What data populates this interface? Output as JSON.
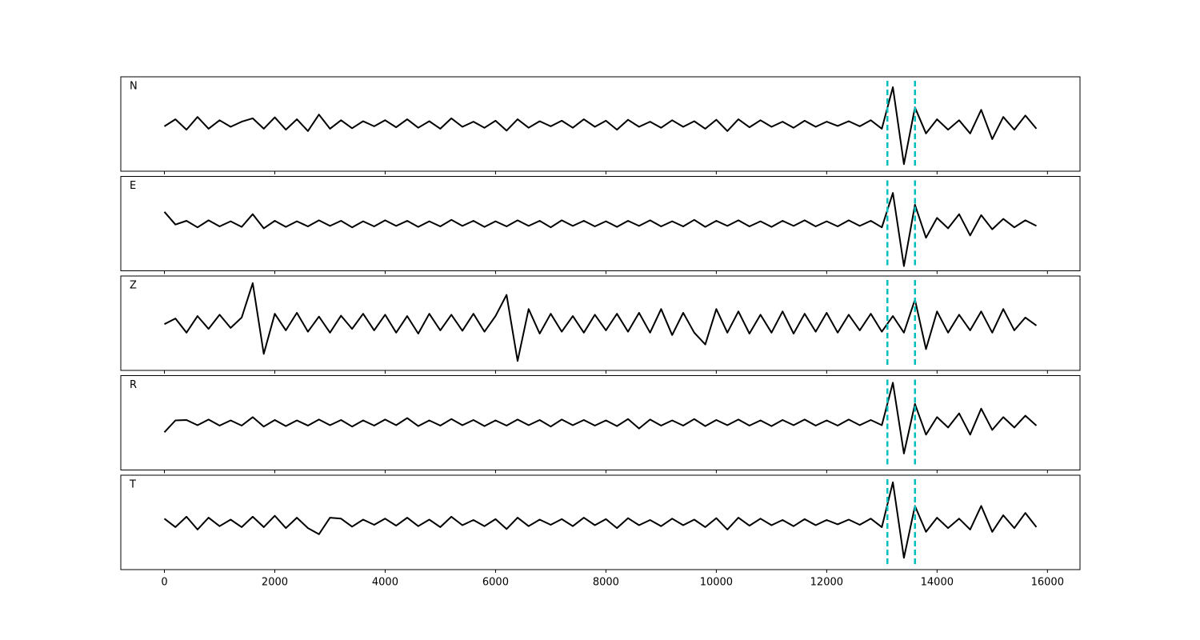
{
  "chart_data": [
    {
      "type": "line",
      "label": "N",
      "color": "#000000",
      "marker_color": "#00bfbf",
      "markers": [
        13100,
        13600
      ],
      "xlim": [
        -790,
        16590
      ],
      "ylim": [
        -1,
        1
      ],
      "x": [
        0,
        200,
        400,
        600,
        800,
        1000,
        1200,
        1400,
        1600,
        1800,
        2000,
        2200,
        2400,
        2600,
        2800,
        3000,
        3200,
        3400,
        3600,
        3800,
        4000,
        4200,
        4400,
        4600,
        4800,
        5000,
        5200,
        5400,
        5600,
        5800,
        6000,
        6200,
        6400,
        6600,
        6800,
        7000,
        7200,
        7400,
        7600,
        7800,
        8000,
        8200,
        8400,
        8600,
        8800,
        9000,
        9200,
        9400,
        9600,
        9800,
        10000,
        10200,
        10400,
        10600,
        10800,
        11000,
        11200,
        11400,
        11600,
        11800,
        12000,
        12200,
        12400,
        12600,
        12800,
        13000,
        13200,
        13400,
        13600,
        13800,
        14000,
        14200,
        14400,
        14600,
        14800,
        15000,
        15200,
        15400,
        15600,
        15800
      ],
      "values": [
        -0.05,
        0.1,
        -0.12,
        0.15,
        -0.1,
        0.08,
        -0.06,
        0.05,
        0.12,
        -0.1,
        0.14,
        -0.12,
        0.1,
        -0.15,
        0.2,
        -0.1,
        0.08,
        -0.09,
        0.06,
        -0.05,
        0.08,
        -0.07,
        0.1,
        -0.08,
        0.06,
        -0.1,
        0.12,
        -0.06,
        0.05,
        -0.08,
        0.07,
        -0.14,
        0.1,
        -0.08,
        0.06,
        -0.05,
        0.07,
        -0.08,
        0.1,
        -0.06,
        0.07,
        -0.12,
        0.09,
        -0.06,
        0.05,
        -0.08,
        0.08,
        -0.06,
        0.06,
        -0.1,
        0.09,
        -0.15,
        0.1,
        -0.07,
        0.08,
        -0.06,
        0.05,
        -0.08,
        0.07,
        -0.06,
        0.05,
        -0.04,
        0.06,
        -0.05,
        0.08,
        -0.1,
        0.78,
        -0.85,
        0.35,
        -0.2,
        0.1,
        -0.12,
        0.08,
        -0.2,
        0.3,
        -0.32,
        0.15,
        -0.12,
        0.18,
        -0.1
      ]
    },
    {
      "type": "line",
      "label": "E",
      "color": "#000000",
      "marker_color": "#00bfbf",
      "markers": [
        13100,
        13600
      ],
      "xlim": [
        -790,
        16590
      ],
      "ylim": [
        -1,
        1
      ],
      "x": [
        0,
        200,
        400,
        600,
        800,
        1000,
        1200,
        1400,
        1600,
        1800,
        2000,
        2200,
        2400,
        2600,
        2800,
        3000,
        3200,
        3400,
        3600,
        3800,
        4000,
        4200,
        4400,
        4600,
        4800,
        5000,
        5200,
        5400,
        5600,
        5800,
        6000,
        6200,
        6400,
        6600,
        6800,
        7000,
        7200,
        7400,
        7600,
        7800,
        8000,
        8200,
        8400,
        8600,
        8800,
        9000,
        9200,
        9400,
        9600,
        9800,
        10000,
        10200,
        10400,
        10600,
        10800,
        11000,
        11200,
        11400,
        11600,
        11800,
        12000,
        12200,
        12400,
        12600,
        12800,
        13000,
        13200,
        13400,
        13600,
        13800,
        14000,
        14200,
        14400,
        14600,
        14800,
        15000,
        15200,
        15400,
        15600,
        15800
      ],
      "values": [
        0.25,
        -0.02,
        0.06,
        -0.08,
        0.07,
        -0.06,
        0.05,
        -0.07,
        0.2,
        -0.1,
        0.06,
        -0.07,
        0.05,
        -0.06,
        0.07,
        -0.05,
        0.06,
        -0.08,
        0.05,
        -0.06,
        0.07,
        -0.05,
        0.06,
        -0.07,
        0.05,
        -0.06,
        0.08,
        -0.05,
        0.06,
        -0.07,
        0.05,
        -0.06,
        0.07,
        -0.05,
        0.06,
        -0.08,
        0.07,
        -0.05,
        0.06,
        -0.06,
        0.05,
        -0.07,
        0.06,
        -0.05,
        0.07,
        -0.06,
        0.05,
        -0.06,
        0.08,
        -0.07,
        0.06,
        -0.05,
        0.07,
        -0.06,
        0.05,
        -0.07,
        0.06,
        -0.05,
        0.07,
        -0.06,
        0.05,
        -0.06,
        0.07,
        -0.05,
        0.06,
        -0.08,
        0.65,
        -0.9,
        0.4,
        -0.3,
        0.12,
        -0.1,
        0.2,
        -0.25,
        0.18,
        -0.12,
        0.1,
        -0.08,
        0.07,
        -0.05
      ]
    },
    {
      "type": "line",
      "label": "Z",
      "color": "#000000",
      "marker_color": "#00bfbf",
      "markers": [
        13100,
        13600
      ],
      "xlim": [
        -790,
        16590
      ],
      "ylim": [
        -1,
        1
      ],
      "x": [
        0,
        200,
        400,
        600,
        800,
        1000,
        1200,
        1400,
        1600,
        1800,
        2000,
        2200,
        2400,
        2600,
        2800,
        3000,
        3200,
        3400,
        3600,
        3800,
        4000,
        4200,
        4400,
        4600,
        4800,
        5000,
        5200,
        5400,
        5600,
        5800,
        6000,
        6200,
        6400,
        6600,
        6800,
        7000,
        7200,
        7400,
        7600,
        7800,
        8000,
        8200,
        8400,
        8600,
        8800,
        9000,
        9200,
        9400,
        9600,
        9800,
        10000,
        10200,
        10400,
        10600,
        10800,
        11000,
        11200,
        11400,
        11600,
        11800,
        12000,
        12200,
        12400,
        12600,
        12800,
        13000,
        13200,
        13400,
        13600,
        13800,
        14000,
        14200,
        14400,
        14600,
        14800,
        15000,
        15200,
        15400,
        15600,
        15800
      ],
      "values": [
        -0.02,
        0.1,
        -0.2,
        0.15,
        -0.12,
        0.18,
        -0.1,
        0.12,
        0.85,
        -0.65,
        0.2,
        -0.15,
        0.22,
        -0.18,
        0.14,
        -0.2,
        0.16,
        -0.12,
        0.2,
        -0.15,
        0.18,
        -0.2,
        0.15,
        -0.22,
        0.2,
        -0.15,
        0.18,
        -0.16,
        0.2,
        -0.18,
        0.15,
        0.6,
        -0.8,
        0.3,
        -0.22,
        0.2,
        -0.18,
        0.15,
        -0.2,
        0.18,
        -0.15,
        0.2,
        -0.18,
        0.22,
        -0.2,
        0.3,
        -0.25,
        0.22,
        -0.2,
        -0.45,
        0.3,
        -0.2,
        0.25,
        -0.22,
        0.18,
        -0.2,
        0.25,
        -0.22,
        0.2,
        -0.18,
        0.22,
        -0.2,
        0.18,
        -0.15,
        0.2,
        -0.18,
        0.15,
        -0.2,
        0.5,
        -0.55,
        0.25,
        -0.2,
        0.18,
        -0.15,
        0.25,
        -0.2,
        0.3,
        -0.15,
        0.12,
        -0.05
      ]
    },
    {
      "type": "line",
      "label": "R",
      "color": "#000000",
      "marker_color": "#00bfbf",
      "markers": [
        13100,
        13600
      ],
      "xlim": [
        -790,
        16590
      ],
      "ylim": [
        -1,
        1
      ],
      "x": [
        0,
        200,
        400,
        600,
        800,
        1000,
        1200,
        1400,
        1600,
        1800,
        2000,
        2200,
        2400,
        2600,
        2800,
        3000,
        3200,
        3400,
        3600,
        3800,
        4000,
        4200,
        4400,
        4600,
        4800,
        5000,
        5200,
        5400,
        5600,
        5800,
        6000,
        6200,
        6400,
        6600,
        6800,
        7000,
        7200,
        7400,
        7600,
        7800,
        8000,
        8200,
        8400,
        8600,
        8800,
        9000,
        9200,
        9400,
        9600,
        9800,
        10000,
        10200,
        10400,
        10600,
        10800,
        11000,
        11200,
        11400,
        11600,
        11800,
        12000,
        12200,
        12400,
        12600,
        12800,
        13000,
        13200,
        13400,
        13600,
        13800,
        14000,
        14200,
        14400,
        14600,
        14800,
        15000,
        15200,
        15400,
        15600,
        15800
      ],
      "values": [
        -0.2,
        0.05,
        0.06,
        -0.05,
        0.07,
        -0.06,
        0.05,
        -0.06,
        0.12,
        -0.08,
        0.06,
        -0.07,
        0.05,
        -0.06,
        0.07,
        -0.05,
        0.06,
        -0.08,
        0.05,
        -0.06,
        0.07,
        -0.05,
        0.1,
        -0.07,
        0.05,
        -0.06,
        0.08,
        -0.05,
        0.06,
        -0.07,
        0.05,
        -0.06,
        0.07,
        -0.05,
        0.06,
        -0.08,
        0.07,
        -0.05,
        0.06,
        -0.06,
        0.05,
        -0.07,
        0.08,
        -0.12,
        0.07,
        -0.06,
        0.05,
        -0.06,
        0.08,
        -0.07,
        0.06,
        -0.05,
        0.07,
        -0.06,
        0.05,
        -0.07,
        0.06,
        -0.05,
        0.07,
        -0.06,
        0.05,
        -0.06,
        0.07,
        -0.05,
        0.06,
        -0.05,
        0.85,
        -0.65,
        0.4,
        -0.25,
        0.12,
        -0.1,
        0.2,
        -0.25,
        0.3,
        -0.15,
        0.12,
        -0.1,
        0.15,
        -0.06
      ]
    },
    {
      "type": "line",
      "label": "T",
      "color": "#000000",
      "marker_color": "#00bfbf",
      "markers": [
        13100,
        13600
      ],
      "xlim": [
        -790,
        16590
      ],
      "ylim": [
        -1,
        1
      ],
      "x": [
        0,
        200,
        400,
        600,
        800,
        1000,
        1200,
        1400,
        1600,
        1800,
        2000,
        2200,
        2400,
        2600,
        2800,
        3000,
        3200,
        3400,
        3600,
        3800,
        4000,
        4200,
        4400,
        4600,
        4800,
        5000,
        5200,
        5400,
        5600,
        5800,
        6000,
        6200,
        6400,
        6600,
        6800,
        7000,
        7200,
        7400,
        7600,
        7800,
        8000,
        8200,
        8400,
        8600,
        8800,
        9000,
        9200,
        9400,
        9600,
        9800,
        10000,
        10200,
        10400,
        10600,
        10800,
        11000,
        11200,
        11400,
        11600,
        11800,
        12000,
        12200,
        12400,
        12600,
        12800,
        13000,
        13200,
        13400,
        13600,
        13800,
        14000,
        14200,
        14400,
        14600,
        14800,
        15000,
        15200,
        15400,
        15600,
        15800
      ],
      "values": [
        0.08,
        -0.1,
        0.12,
        -0.15,
        0.1,
        -0.08,
        0.06,
        -0.1,
        0.12,
        -0.1,
        0.14,
        -0.12,
        0.1,
        -0.12,
        -0.25,
        0.1,
        0.08,
        -0.09,
        0.06,
        -0.05,
        0.08,
        -0.07,
        0.1,
        -0.08,
        0.06,
        -0.1,
        0.12,
        -0.06,
        0.05,
        -0.08,
        0.07,
        -0.14,
        0.1,
        -0.08,
        0.06,
        -0.05,
        0.07,
        -0.08,
        0.1,
        -0.06,
        0.07,
        -0.12,
        0.09,
        -0.06,
        0.05,
        -0.08,
        0.08,
        -0.06,
        0.06,
        -0.1,
        0.09,
        -0.15,
        0.1,
        -0.07,
        0.08,
        -0.06,
        0.05,
        -0.08,
        0.07,
        -0.06,
        0.05,
        -0.04,
        0.06,
        -0.05,
        0.08,
        -0.1,
        0.85,
        -0.75,
        0.35,
        -0.2,
        0.1,
        -0.12,
        0.08,
        -0.15,
        0.35,
        -0.2,
        0.15,
        -0.12,
        0.2,
        -0.1
      ],
      "xticks": [
        0,
        2000,
        4000,
        6000,
        8000,
        10000,
        12000,
        14000,
        16000
      ]
    }
  ]
}
